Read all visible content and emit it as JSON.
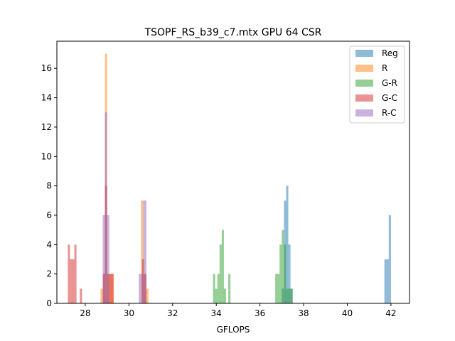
{
  "chart_data": {
    "type": "histogram",
    "title": "TSOPF_RS_b39_c7.mtx GPU 64 CSR",
    "xlabel": "GFLOPS",
    "ylabel": "",
    "xlim": [
      26.7,
      42.85
    ],
    "ylim": [
      0,
      17.85
    ],
    "xticks": [
      28,
      30,
      32,
      34,
      36,
      38,
      40,
      42
    ],
    "yticks": [
      0,
      2,
      4,
      6,
      8,
      10,
      12,
      14,
      16
    ],
    "grid": false,
    "legend_position": "top-right",
    "series": [
      {
        "name": "Reg",
        "color": "#1f77b4",
        "bins": [
          {
            "x0": 37.0,
            "x1": 37.1,
            "count": 1
          },
          {
            "x0": 37.1,
            "x1": 37.2,
            "count": 7
          },
          {
            "x0": 37.2,
            "x1": 37.3,
            "count": 8
          },
          {
            "x0": 37.3,
            "x1": 37.4,
            "count": 4
          },
          {
            "x0": 37.4,
            "x1": 37.5,
            "count": 1
          },
          {
            "x0": 41.7,
            "x1": 41.8,
            "count": 3
          },
          {
            "x0": 41.8,
            "x1": 41.9,
            "count": 3
          },
          {
            "x0": 41.9,
            "x1": 42.0,
            "count": 6
          }
        ]
      },
      {
        "name": "R",
        "color": "#ff7f0e",
        "bins": [
          {
            "x0": 28.7,
            "x1": 28.8,
            "count": 1
          },
          {
            "x0": 28.8,
            "x1": 28.9,
            "count": 2
          },
          {
            "x0": 28.9,
            "x1": 29.0,
            "count": 17
          },
          {
            "x0": 29.0,
            "x1": 29.1,
            "count": 2
          },
          {
            "x0": 29.1,
            "x1": 29.3,
            "count": 2
          },
          {
            "x0": 30.55,
            "x1": 30.65,
            "count": 7
          },
          {
            "x0": 30.65,
            "x1": 30.8,
            "count": 2
          },
          {
            "x0": 30.8,
            "x1": 30.9,
            "count": 1
          }
        ]
      },
      {
        "name": "G-R",
        "color": "#2ca02c",
        "bins": [
          {
            "x0": 33.85,
            "x1": 33.95,
            "count": 2
          },
          {
            "x0": 33.95,
            "x1": 34.05,
            "count": 1
          },
          {
            "x0": 34.05,
            "x1": 34.15,
            "count": 2
          },
          {
            "x0": 34.15,
            "x1": 34.25,
            "count": 4
          },
          {
            "x0": 34.25,
            "x1": 34.35,
            "count": 5
          },
          {
            "x0": 34.35,
            "x1": 34.45,
            "count": 1
          },
          {
            "x0": 34.55,
            "x1": 34.65,
            "count": 2
          },
          {
            "x0": 36.7,
            "x1": 36.9,
            "count": 2
          },
          {
            "x0": 36.9,
            "x1": 37.0,
            "count": 4
          },
          {
            "x0": 37.0,
            "x1": 37.1,
            "count": 5
          },
          {
            "x0": 37.1,
            "x1": 37.2,
            "count": 4
          },
          {
            "x0": 37.2,
            "x1": 37.4,
            "count": 1
          },
          {
            "x0": 37.4,
            "x1": 37.5,
            "count": 1
          }
        ]
      },
      {
        "name": "G-C",
        "color": "#d62728",
        "bins": [
          {
            "x0": 27.2,
            "x1": 27.3,
            "count": 4
          },
          {
            "x0": 27.3,
            "x1": 27.4,
            "count": 3
          },
          {
            "x0": 27.4,
            "x1": 27.5,
            "count": 3
          },
          {
            "x0": 27.5,
            "x1": 27.6,
            "count": 4
          },
          {
            "x0": 27.6,
            "x1": 27.75,
            "count": 0
          },
          {
            "x0": 27.75,
            "x1": 27.85,
            "count": 1
          },
          {
            "x0": 28.8,
            "x1": 28.9,
            "count": 2
          },
          {
            "x0": 28.9,
            "x1": 29.0,
            "count": 8
          },
          {
            "x0": 29.0,
            "x1": 29.1,
            "count": 2
          },
          {
            "x0": 29.1,
            "x1": 29.3,
            "count": 2
          },
          {
            "x0": 30.6,
            "x1": 30.7,
            "count": 3
          },
          {
            "x0": 30.7,
            "x1": 30.8,
            "count": 2
          }
        ]
      },
      {
        "name": "R-C",
        "color": "#9467bd",
        "bins": [
          {
            "x0": 28.8,
            "x1": 28.9,
            "count": 6
          },
          {
            "x0": 28.9,
            "x1": 29.0,
            "count": 13
          },
          {
            "x0": 29.0,
            "x1": 29.1,
            "count": 6
          },
          {
            "x0": 30.45,
            "x1": 30.55,
            "count": 2
          },
          {
            "x0": 30.55,
            "x1": 30.65,
            "count": 2
          },
          {
            "x0": 30.65,
            "x1": 30.8,
            "count": 7
          }
        ]
      }
    ]
  }
}
